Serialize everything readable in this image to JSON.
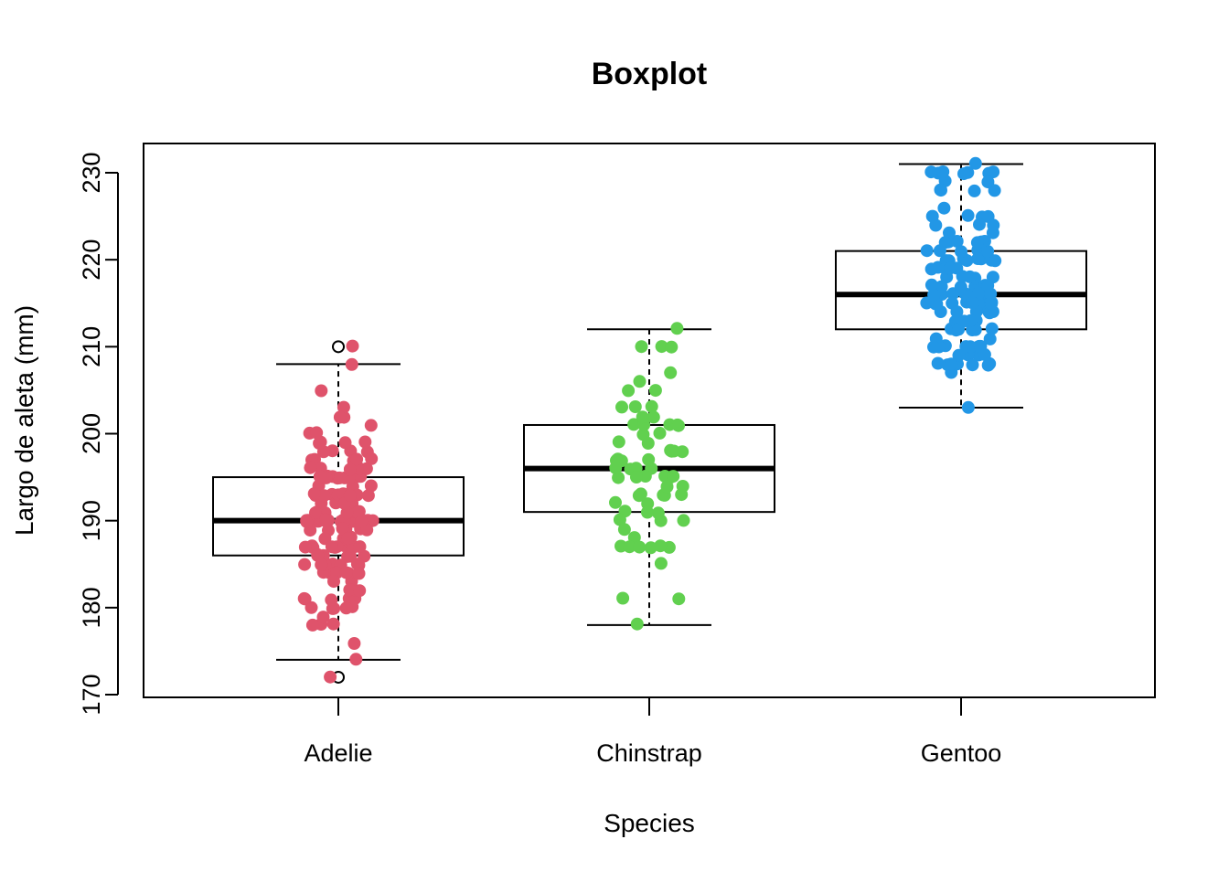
{
  "chart_data": {
    "type": "boxplot",
    "title": "Boxplot",
    "xlabel": "Species",
    "ylabel": "Largo de aleta (mm)",
    "ylim": [
      170,
      230
    ],
    "yticks": [
      170,
      180,
      190,
      200,
      210,
      220,
      230
    ],
    "categories": [
      "Adelie",
      "Chinstrap",
      "Gentoo"
    ],
    "grid": false,
    "legend": "none",
    "boxes": [
      {
        "category": "Adelie",
        "whisker_low": 174,
        "q1": 186,
        "median": 190,
        "q3": 195,
        "whisker_high": 208,
        "outliers": [
          172,
          210
        ],
        "color": "#DF536B"
      },
      {
        "category": "Chinstrap",
        "whisker_low": 178,
        "q1": 191,
        "median": 196,
        "q3": 201,
        "whisker_high": 212,
        "outliers": [],
        "color": "#61D04F"
      },
      {
        "category": "Gentoo",
        "whisker_low": 203,
        "q1": 212,
        "median": 216,
        "q3": 221,
        "whisker_high": 231,
        "outliers": [],
        "color": "#2297E6"
      }
    ],
    "jittered_points": [
      {
        "category": "Adelie",
        "color": "#DF536B",
        "values": [
          181,
          186,
          195,
          193,
          190,
          181,
          195,
          193,
          190,
          186,
          180,
          182,
          191,
          198,
          185,
          195,
          197,
          184,
          194,
          174,
          180,
          189,
          185,
          180,
          187,
          183,
          187,
          172,
          180,
          178,
          178,
          188,
          184,
          195,
          196,
          190,
          180,
          181,
          184,
          182,
          195,
          186,
          196,
          185,
          190,
          182,
          179,
          190,
          191,
          186,
          188,
          190,
          200,
          187,
          191,
          186,
          193,
          181,
          194,
          185,
          195,
          185,
          192,
          184,
          192,
          195,
          188,
          190,
          198,
          190,
          190,
          196,
          197,
          190,
          195,
          191,
          184,
          187,
          195,
          189,
          196,
          187,
          193,
          191,
          194,
          190,
          189,
          189,
          190,
          202,
          205,
          185,
          186,
          187,
          208,
          190,
          196,
          178,
          192,
          192,
          203,
          183,
          190,
          193,
          184,
          199,
          190,
          181,
          197,
          198,
          191,
          193,
          197,
          191,
          196,
          188,
          199,
          189,
          189,
          187,
          198,
          176,
          202,
          186,
          199,
          191,
          195,
          191,
          210,
          190,
          197,
          193,
          199,
          187,
          190,
          191,
          200,
          185,
          193,
          193,
          187,
          188,
          190,
          192,
          185,
          190,
          184,
          195,
          193,
          187,
          201
        ]
      },
      {
        "category": "Chinstrap",
        "color": "#61D04F",
        "values": [
          192,
          196,
          193,
          188,
          197,
          198,
          178,
          197,
          195,
          198,
          193,
          194,
          185,
          201,
          190,
          201,
          197,
          181,
          190,
          195,
          181,
          191,
          187,
          193,
          195,
          197,
          200,
          200,
          191,
          205,
          187,
          201,
          187,
          203,
          195,
          199,
          195,
          210,
          192,
          205,
          210,
          187,
          196,
          196,
          196,
          201,
          190,
          212,
          187,
          198,
          199,
          201,
          193,
          203,
          187,
          197,
          191,
          203,
          202,
          194,
          206,
          189,
          195,
          207,
          202,
          193,
          210,
          198
        ]
      },
      {
        "category": "Gentoo",
        "color": "#2297E6",
        "values": [
          211,
          230,
          210,
          218,
          215,
          210,
          211,
          219,
          209,
          215,
          214,
          216,
          214,
          213,
          210,
          217,
          210,
          221,
          209,
          222,
          218,
          215,
          213,
          215,
          215,
          215,
          216,
          215,
          210,
          220,
          222,
          209,
          207,
          230,
          220,
          220,
          213,
          219,
          208,
          208,
          208,
          225,
          210,
          216,
          222,
          217,
          210,
          225,
          213,
          215,
          210,
          220,
          210,
          225,
          217,
          220,
          208,
          220,
          208,
          224,
          208,
          221,
          214,
          231,
          219,
          230,
          214,
          229,
          220,
          223,
          216,
          221,
          221,
          217,
          216,
          230,
          209,
          220,
          215,
          223,
          212,
          221,
          212,
          224,
          212,
          228,
          218,
          218,
          212,
          230,
          218,
          228,
          212,
          224,
          214,
          226,
          216,
          222,
          203,
          225,
          219,
          228,
          215,
          228,
          216,
          215,
          210,
          219,
          208,
          209,
          216,
          229,
          213,
          230,
          217,
          230,
          217,
          222,
          214,
          215,
          222,
          212,
          213
        ]
      }
    ]
  }
}
